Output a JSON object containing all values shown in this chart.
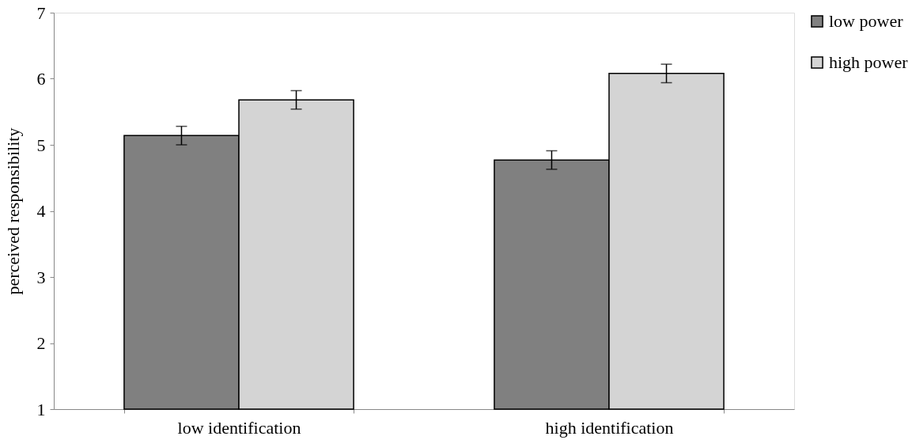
{
  "chart_data": {
    "type": "bar",
    "ylabel": "perceived responsibility",
    "categories": [
      "low identification",
      "high identification"
    ],
    "series": [
      {
        "name": "low power",
        "color": "#808080",
        "values": [
          5.14,
          4.77
        ],
        "errors": [
          0.14,
          0.14
        ]
      },
      {
        "name": "high power",
        "color": "#d4d4d4",
        "values": [
          5.68,
          6.08
        ],
        "errors": [
          0.14,
          0.14
        ]
      }
    ],
    "ylim": [
      1,
      7
    ],
    "yticks": [
      1,
      2,
      3,
      4,
      5,
      6,
      7
    ],
    "grid": false,
    "legend": "right"
  }
}
